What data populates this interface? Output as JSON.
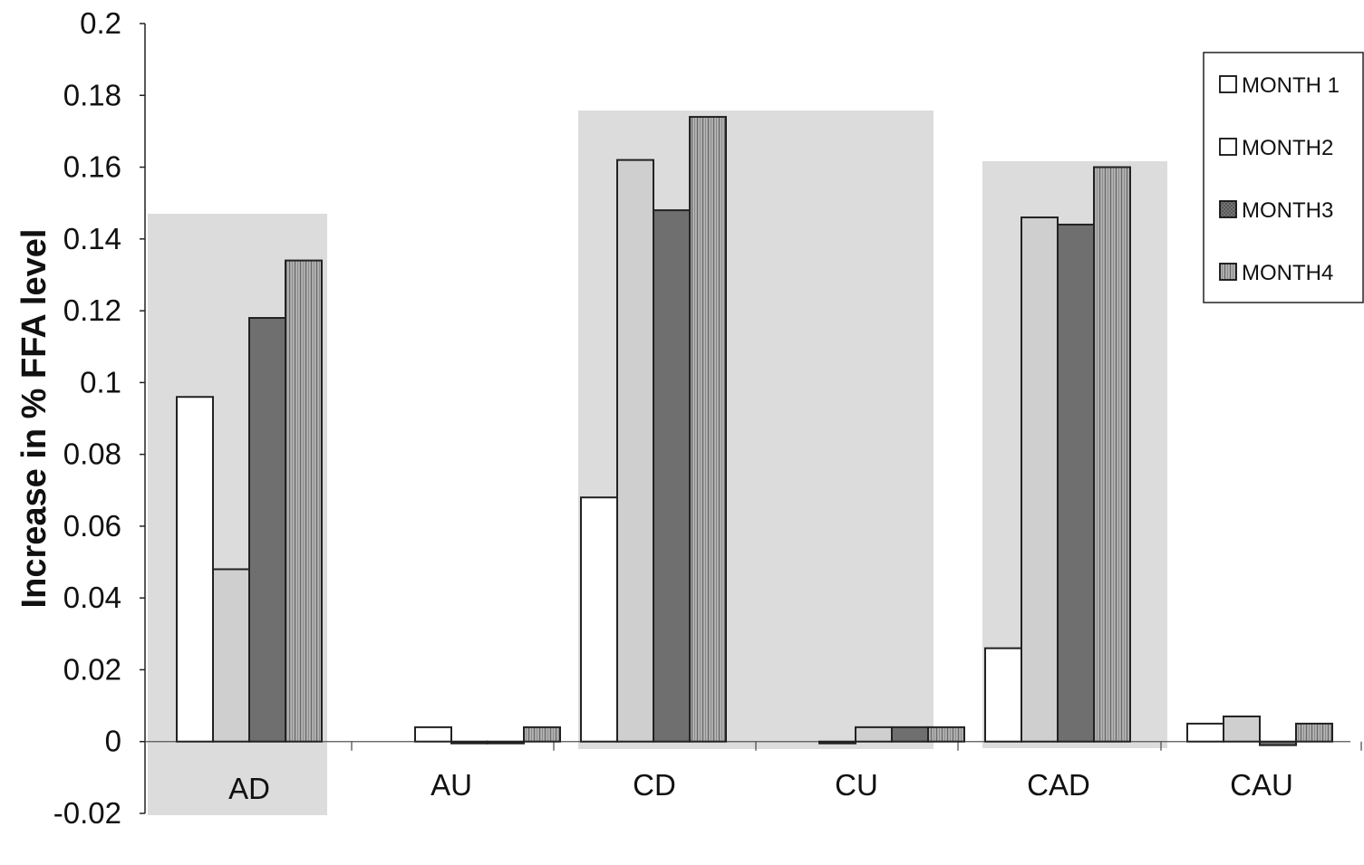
{
  "chart_data": {
    "type": "bar",
    "title": "",
    "xlabel": "",
    "ylabel": "Increase in % FFA level",
    "ylim": [
      -0.02,
      0.2
    ],
    "yticks": [
      "0.2",
      "0.18",
      "0.16",
      "0.14",
      "0.12",
      "0.1",
      "0.08",
      "0.06",
      "0.04",
      "0.02",
      "0",
      "-0.02"
    ],
    "categories": [
      "AD",
      "AU",
      "CD",
      "CU",
      "CAD",
      "CAU"
    ],
    "series": [
      {
        "name": "MONTH 1",
        "values": [
          0.096,
          0.004,
          0.068,
          0.0,
          0.026,
          0.005
        ]
      },
      {
        "name": "MONTH2",
        "values": [
          0.048,
          0.0,
          0.162,
          0.004,
          0.146,
          0.007
        ]
      },
      {
        "name": "MONTH3",
        "values": [
          0.118,
          0.0,
          0.148,
          0.004,
          0.144,
          -0.001
        ]
      },
      {
        "name": "MONTH4",
        "values": [
          0.134,
          0.004,
          0.174,
          0.004,
          0.16,
          0.005
        ]
      }
    ],
    "legend_position": "top-right",
    "grid": false,
    "colors": {
      "series": [
        "#ffffff",
        "#cfcfcf",
        "#777777",
        "#a6a6a6"
      ],
      "panel": "#dcdcdc",
      "outline": "#222222"
    }
  }
}
